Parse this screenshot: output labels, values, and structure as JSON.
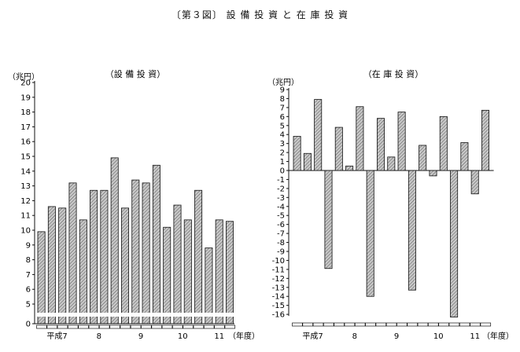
{
  "figure": {
    "title": "〔第３図〕 設 備 投 資 と 在 庫 投 資"
  },
  "colors": {
    "ink": "#111111",
    "bar_fill": "#bdbdbd",
    "hatch": "#555555"
  },
  "chart_data": [
    {
      "type": "bar",
      "title": "（設 備 投 資）",
      "ylabel": "（兆円）",
      "xlabel": "（年度）",
      "ylim": [
        0,
        20
      ],
      "y_axis_break": true,
      "yticks": [
        0,
        5,
        6,
        7,
        8,
        9,
        10,
        11,
        12,
        13,
        14,
        15,
        16,
        17,
        18,
        19,
        20
      ],
      "groups": [
        "平成7",
        "8",
        "9",
        "10",
        "11"
      ],
      "quarters_per_group": 4,
      "values": [
        9.9,
        11.6,
        11.5,
        13.2,
        10.7,
        12.7,
        12.7,
        14.9,
        11.5,
        13.4,
        13.2,
        14.4,
        10.2,
        11.7,
        10.7,
        12.7,
        8.8,
        10.7,
        10.6
      ],
      "grid": false,
      "legend": "none"
    },
    {
      "type": "bar",
      "title": "（在 庫 投 資）",
      "ylabel": "（兆円）",
      "xlabel": "（年度）",
      "ylim": [
        -16,
        9
      ],
      "yticks": [
        9,
        8,
        7,
        6,
        5,
        4,
        3,
        2,
        1,
        0,
        -1,
        -2,
        -3,
        -4,
        -5,
        -6,
        -7,
        -8,
        -9,
        -10,
        -11,
        -12,
        -13,
        -14,
        -15,
        -16
      ],
      "groups": [
        "平成7",
        "8",
        "9",
        "10",
        "11"
      ],
      "quarters_per_group": 4,
      "values": [
        3.8,
        1.9,
        7.9,
        -10.9,
        4.8,
        0.5,
        7.1,
        -14.0,
        5.8,
        1.5,
        6.5,
        -13.3,
        2.8,
        -0.6,
        6.0,
        -16.3,
        3.1,
        -2.6,
        6.7
      ],
      "grid": false,
      "legend": "none"
    }
  ]
}
